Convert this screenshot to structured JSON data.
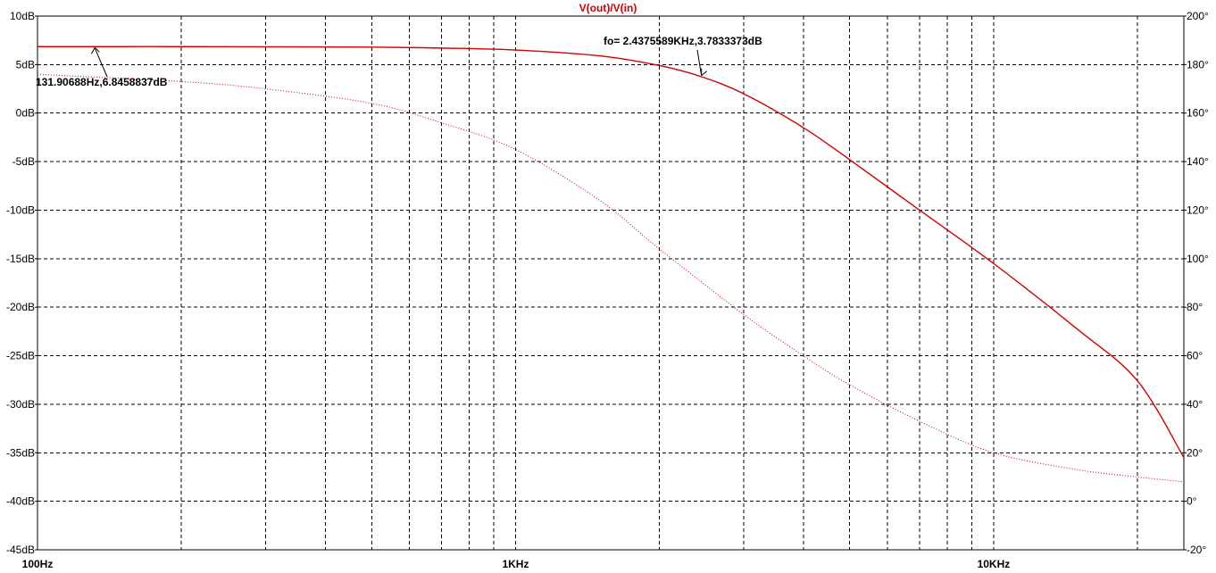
{
  "chart_data": {
    "type": "line",
    "title": "V(out)/V(in)",
    "colors": {
      "trace": "#d40000",
      "grid": "#000000",
      "axis": "#000000",
      "background": "#ffffff"
    },
    "x_axis": {
      "scale": "log",
      "unit": "Hz",
      "range": [
        100,
        25000
      ],
      "tick_labels": [
        {
          "value": 100,
          "label": "100Hz"
        },
        {
          "value": 1000,
          "label": "1KHz"
        },
        {
          "value": 10000,
          "label": "10KHz"
        }
      ]
    },
    "y_left": {
      "unit": "dB",
      "range": [
        -45,
        10
      ],
      "tick_labels": [
        "10dB",
        "5dB",
        "0dB",
        "-5dB",
        "-10dB",
        "-15dB",
        "-20dB",
        "-25dB",
        "-30dB",
        "-35dB",
        "-40dB",
        "-45dB"
      ],
      "tick_values": [
        10,
        5,
        0,
        -5,
        -10,
        -15,
        -20,
        -25,
        -30,
        -35,
        -40,
        -45
      ]
    },
    "y_right": {
      "unit": "°",
      "range": [
        -20,
        200
      ],
      "tick_labels": [
        "200°",
        "180°",
        "160°",
        "140°",
        "120°",
        "100°",
        "80°",
        "60°",
        "40°",
        "20°",
        "0°",
        "-20°"
      ],
      "tick_values": [
        200,
        180,
        160,
        140,
        120,
        100,
        80,
        60,
        40,
        20,
        0,
        -20
      ]
    },
    "grid": true,
    "series": [
      {
        "name": "",
        "quantity": "magnitude",
        "axis": "left",
        "style": "solid",
        "x": [
          100,
          130,
          200,
          300,
          500,
          700,
          1000,
          1500,
          2000,
          2437.5589,
          3000,
          4000,
          5000,
          7000,
          10000,
          15000,
          20000,
          25000
        ],
        "values": [
          6.85,
          6.85,
          6.85,
          6.83,
          6.8,
          6.7,
          6.5,
          5.9,
          4.9,
          3.78,
          2.0,
          -1.5,
          -4.8,
          -10.0,
          -15.5,
          -22.3,
          -27.6,
          -35.5
        ]
      },
      {
        "name": "",
        "quantity": "phase",
        "axis": "right",
        "style": "dotted",
        "x": [
          100,
          200,
          300,
          500,
          700,
          1000,
          1500,
          2000,
          3000,
          4000,
          5000,
          7000,
          10000,
          15000,
          20000,
          25000
        ],
        "values": [
          176,
          173,
          170,
          164,
          156,
          145,
          124,
          104,
          77,
          60,
          48,
          33,
          20,
          13,
          10,
          8
        ]
      }
    ],
    "annotations": [
      {
        "text": "131.90688Hz,6.8458837dB",
        "x": 131.90688,
        "y": 6.8458837
      },
      {
        "text": "fo= 2.4375589KHz,3.7833373dB",
        "x": 2437.5589,
        "y": 3.7833373
      }
    ]
  }
}
